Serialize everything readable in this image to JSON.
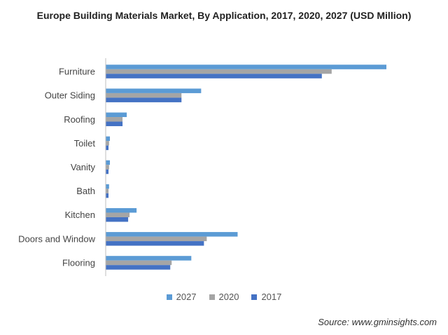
{
  "chart_data": {
    "type": "bar",
    "orientation": "horizontal",
    "title": "Europe Building Materials Market, By Application, 2017, 2020, 2027 (USD Million)",
    "categories": [
      "Furniture",
      "Outer Siding",
      "Roofing",
      "Toilet",
      "Vanity",
      "Bath",
      "Kitchen",
      "Doors and Window",
      "Flooring"
    ],
    "series": [
      {
        "name": "2027",
        "color": "#5b9bd5",
        "values": [
          100,
          34,
          7.5,
          1.5,
          1.5,
          1.2,
          11,
          47,
          30.5
        ]
      },
      {
        "name": "2020",
        "color": "#a5a5a5",
        "values": [
          80.5,
          27,
          6,
          1.2,
          1.2,
          1.0,
          8.5,
          36,
          23.5
        ]
      },
      {
        "name": "2017",
        "color": "#4472c4",
        "values": [
          77,
          27,
          6,
          1.0,
          1.0,
          1.0,
          8,
          35,
          23
        ]
      }
    ],
    "xlim": [
      0,
      100
    ],
    "grid": false,
    "legend": "bottom"
  },
  "source_note": "Source: www.gminsights.com"
}
